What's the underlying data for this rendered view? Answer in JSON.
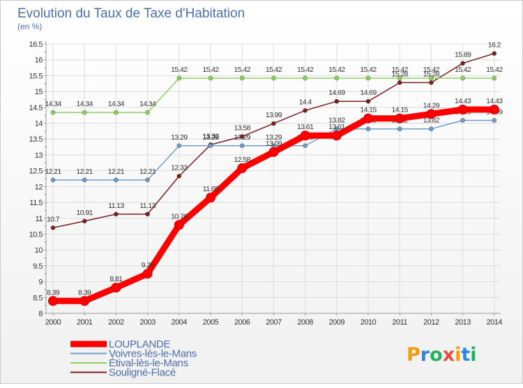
{
  "chart_data": {
    "type": "line",
    "title": "Evolution du Taux de Taxe d'Habitation",
    "ylabel": "(en %)",
    "ylim": [
      8,
      16.5
    ],
    "yticks": [
      "8",
      "8.5",
      "9",
      "9.5",
      "10",
      "10.5",
      "11",
      "11.5",
      "12",
      "12.5",
      "13",
      "13.5",
      "14",
      "14.5",
      "15",
      "15.5",
      "16",
      "16.5"
    ],
    "categories": [
      "2000",
      "2001",
      "2002",
      "2003",
      "2004",
      "2005",
      "2006",
      "2007",
      "2008",
      "2009",
      "2010",
      "2011",
      "2012",
      "2013",
      "2014"
    ],
    "grid": true,
    "legend_position": "bottom-left",
    "series": [
      {
        "name": "Souligné-Flacé",
        "color": "#7a2020",
        "values": [
          10.7,
          10.91,
          11.13,
          11.13,
          12.33,
          13.32,
          13.58,
          13.99,
          14.4,
          14.69,
          14.69,
          15.28,
          15.28,
          15.89,
          16.2
        ],
        "labels": [
          "10.7",
          "10.91",
          "11.13",
          "11.13",
          "12.33",
          "13.32",
          "13.58",
          "13.99",
          "14.4",
          "14.69",
          "14.69",
          "15.28",
          "15.28",
          "15.89",
          "16.2"
        ]
      },
      {
        "name": "Voivres-lès-le-Mans",
        "color": "#6f9ec8",
        "values": [
          12.21,
          12.21,
          12.21,
          12.21,
          13.29,
          13.29,
          13.29,
          13.29,
          13.29,
          13.82,
          13.82,
          13.82,
          13.82,
          14.09,
          14.09
        ],
        "labels": [
          "12.21",
          "12.21",
          "12.21",
          "12.21",
          "13.29",
          "13.29",
          "13.29",
          "13.29",
          "13.29",
          "13.82",
          "13.82",
          "13.82",
          "13.82",
          "14.09",
          "14.09"
        ]
      },
      {
        "name": "Étival-lès-le-Mans",
        "color": "#8ed160",
        "values": [
          14.34,
          14.34,
          14.34,
          14.34,
          15.42,
          15.42,
          15.42,
          15.42,
          15.42,
          15.42,
          15.42,
          15.42,
          15.42,
          15.42,
          15.42
        ],
        "labels": [
          "14.34",
          "14.34",
          "14.34",
          "14.34",
          "15.42",
          "15.42",
          "15.42",
          "15.42",
          "15.42",
          "15.42",
          "15.42",
          "15.42",
          "15.42",
          "15.42",
          "15.42"
        ]
      },
      {
        "name": "LOUPLANDE",
        "color": "#ff0000",
        "values": [
          8.39,
          8.39,
          8.81,
          9.25,
          10.79,
          11.65,
          12.58,
          13.09,
          13.61,
          13.61,
          14.15,
          14.15,
          14.29,
          14.43,
          14.43
        ],
        "labels": [
          "8.39",
          "8.39",
          "8.81",
          "9.25",
          "10.79",
          "11.65",
          "12.58",
          "13.09",
          "13.61",
          "13.61",
          "14.15",
          "14.15",
          "14.29",
          "14.43",
          "14.43"
        ]
      }
    ],
    "legend": [
      "LOUPLANDE",
      "Voivres-lès-le-Mans",
      "Étival-lès-le-Mans",
      "Souligné-Flacé"
    ]
  },
  "watermark": {
    "text": "Proxiti",
    "colors": [
      "#f39c12",
      "#2e86de",
      "#27ae60",
      "#e74c3c"
    ]
  }
}
